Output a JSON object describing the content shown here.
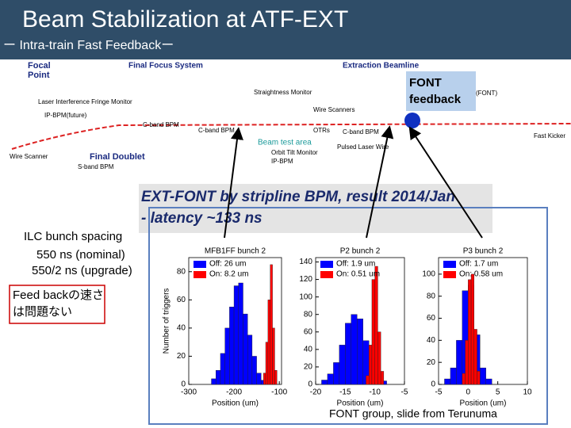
{
  "header": {
    "title": "Beam Stabilization at ATF-EXT",
    "subtitle": "ー Intra-train Fast Feedbackー"
  },
  "diagram": {
    "labels": [
      "Focal",
      "Point",
      "Final Focus System",
      "Extraction Beamline",
      "Laser Interference Fringe Monitor",
      "IP-BPM(future)",
      "Straightness Monitor",
      "Wire Scanners",
      "C-band BPM",
      "C-band BPM",
      "OTRs",
      "C-band BPM",
      "Beam test area",
      "Orbit Tilt Monitor",
      "IP-BPM",
      "Pulsed Laser Wire",
      "Wire Scanner",
      "Final Doublet",
      "S-band BPM",
      "Fast Kicker",
      "(FONT)"
    ],
    "font_box": [
      "FONT",
      "feedback"
    ]
  },
  "result_box": [
    "EXT-FONT by stripline BPM, result 2014/Jan",
    "- latency ~133 ns"
  ],
  "notes": {
    "spacing": [
      "ILC bunch spacing",
      "550 ns (nominal)",
      "550/2 ns (upgrade)"
    ],
    "feedback": [
      "Feed backの速さ",
      "は問題ない"
    ]
  },
  "footer": "FONT group, slide from Terunuma",
  "chart_data": [
    {
      "type": "histogram",
      "title": "MFB1FF bunch 2",
      "x_label": "Position (um)",
      "y_label": "Number of triggers",
      "xlim": [
        -300,
        -95
      ],
      "xticks": [
        -300,
        -200,
        -100
      ],
      "ylim": [
        0,
        90
      ],
      "yticks": [
        0,
        20,
        40,
        60,
        80
      ],
      "series": [
        {
          "name": "Off: 26 um",
          "color": "#0000ff",
          "bins": [
            -250,
            -240,
            -230,
            -220,
            -210,
            -200,
            -190,
            -180,
            -170,
            -160,
            -150,
            -140,
            -130
          ],
          "values": [
            4,
            10,
            22,
            40,
            55,
            70,
            72,
            50,
            35,
            20,
            8,
            3
          ]
        },
        {
          "name": "On: 8.2 um",
          "color": "#ff0000",
          "bins": [
            -135,
            -130,
            -125,
            -120,
            -115,
            -110,
            -105
          ],
          "values": [
            8,
            30,
            60,
            85,
            40,
            10
          ]
        }
      ]
    },
    {
      "type": "histogram",
      "title": "P2 bunch 2",
      "x_label": "Position (um)",
      "xlim": [
        -20,
        -5
      ],
      "xticks": [
        -20,
        -15,
        -10,
        -5
      ],
      "ylim": [
        0,
        145
      ],
      "yticks": [
        0,
        20,
        40,
        60,
        80,
        100,
        120,
        140
      ],
      "series": [
        {
          "name": "Off: 1.9 um",
          "color": "#0000ff",
          "bins": [
            -19,
            -18,
            -17,
            -16,
            -15,
            -14,
            -13,
            -12,
            -11,
            -10,
            -9,
            -8
          ],
          "values": [
            5,
            12,
            25,
            45,
            70,
            80,
            75,
            50,
            30,
            12,
            4
          ]
        },
        {
          "name": "On: 0.51 um",
          "color": "#ff0000",
          "bins": [
            -11.5,
            -11,
            -10.5,
            -10,
            -9.5,
            -9,
            -8.5
          ],
          "values": [
            10,
            45,
            120,
            135,
            60,
            15
          ]
        }
      ]
    },
    {
      "type": "histogram",
      "title": "P3 bunch 2",
      "x_label": "Position (um)",
      "xlim": [
        -5,
        10
      ],
      "xticks": [
        -5,
        0,
        5,
        10
      ],
      "ylim": [
        0,
        115
      ],
      "yticks": [
        0,
        20,
        40,
        60,
        80,
        100
      ],
      "series": [
        {
          "name": "Off: 1.7 um",
          "color": "#0000ff",
          "bins": [
            -4,
            -3,
            -2,
            -1,
            0,
            1,
            2,
            3,
            4
          ],
          "values": [
            5,
            15,
            40,
            85,
            90,
            45,
            15,
            5
          ]
        },
        {
          "name": "On: 0.58 um",
          "color": "#ff0000",
          "bins": [
            -1,
            -0.5,
            0,
            0.5,
            1,
            1.5,
            2
          ],
          "values": [
            10,
            40,
            95,
            100,
            50,
            12
          ]
        }
      ]
    }
  ]
}
